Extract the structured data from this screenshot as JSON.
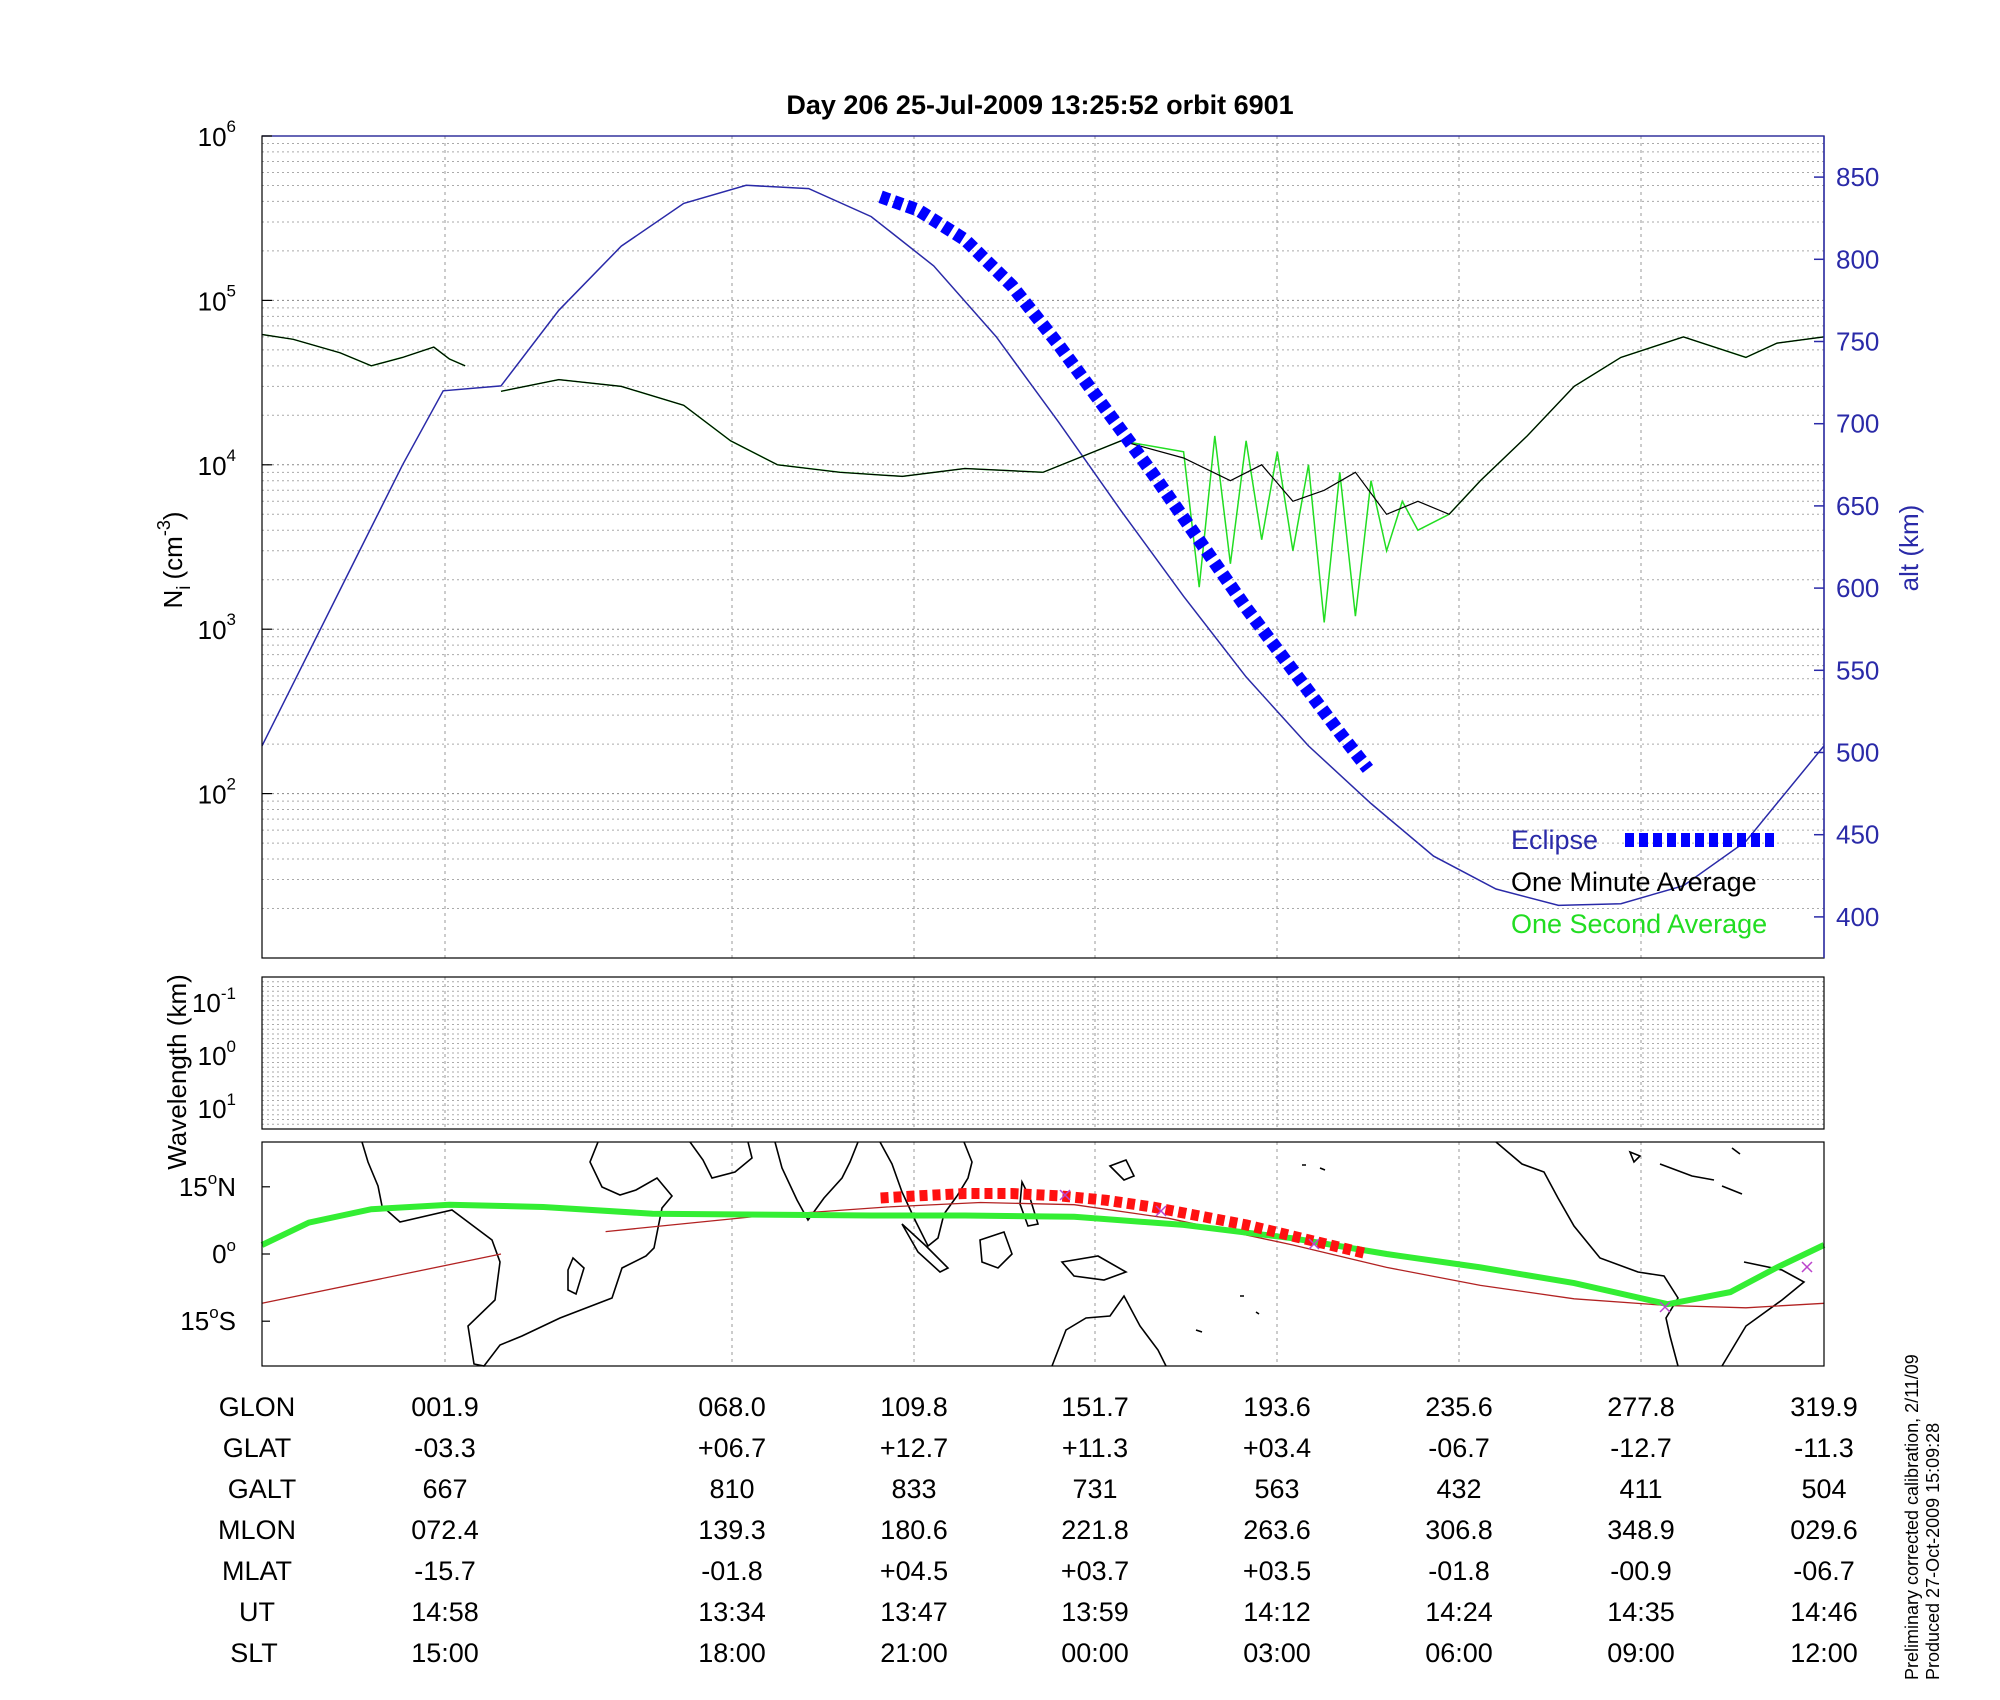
{
  "title": "Day 206  25-Jul-2009 13:25:52   orbit 6901",
  "colors": {
    "alt": "#2a2aa8",
    "eclipse": "#0000ff",
    "minute": "#000000",
    "second": "#22dd22",
    "track": "#33ee33",
    "sat_track": "#b22222",
    "eclipse_map": "#ff1111"
  },
  "chart_data": [
    {
      "type": "line",
      "name": "density-altitude",
      "ylabel_base": "N",
      "ylabel_sub": "i",
      "ylabel_unit": "(cm",
      "ylabel_exp": "-3",
      "ylabel_close": ")",
      "y_scale": "log",
      "y_ticks": [
        "10",
        "10",
        "10",
        "10",
        "10"
      ],
      "y_tick_exps": [
        "2",
        "3",
        "4",
        "5",
        "6"
      ],
      "ylim": [
        10,
        1000000
      ],
      "y2label": "alt (km)",
      "y2_ticks": [
        "400",
        "450",
        "500",
        "550",
        "600",
        "650",
        "700",
        "750",
        "800",
        "850"
      ],
      "y2lim": [
        375,
        875
      ],
      "xlim": [
        0,
        100
      ],
      "grid": true,
      "legend_position": "lower-right",
      "legend": [
        {
          "label": "Eclipse",
          "color": "#0000ff",
          "style": "thick-dashed"
        },
        {
          "label": "One Minute Average",
          "color": "#000000",
          "style": "line"
        },
        {
          "label": "One Second Average",
          "color": "#22dd22",
          "style": "line"
        }
      ],
      "series": [
        {
          "name": "Altitude",
          "axis": "right",
          "x": [
            0,
            3,
            6,
            9,
            11.6,
            15.3,
            19,
            23,
            27,
            31,
            35,
            39,
            43,
            47,
            51,
            55,
            59,
            63,
            67,
            71,
            75,
            79,
            83,
            87,
            91,
            95,
            100
          ],
          "y": [
            504,
            561,
            618,
            675,
            720,
            723,
            769,
            808,
            834,
            845,
            843,
            826,
            796,
            753,
            701,
            647,
            595,
            546,
            504,
            469,
            437,
            417,
            407,
            408,
            419,
            446,
            504
          ]
        },
        {
          "name": "One Minute Average",
          "axis": "left",
          "x": [
            0,
            2,
            5,
            7,
            9,
            11,
            12,
            13,
            15,
            15.3,
            19,
            23,
            27,
            30,
            33,
            37,
            41,
            45,
            50,
            55,
            59,
            62,
            64,
            66,
            68,
            70,
            72,
            74,
            76,
            78,
            81,
            84,
            87,
            91,
            95,
            97,
            100
          ],
          "y": [
            62000,
            58000,
            48000,
            40000,
            45000,
            52000,
            44000,
            40000,
            null,
            28000,
            33000,
            30000,
            23000,
            14000,
            10000,
            9000,
            8500,
            9500,
            9000,
            14000,
            11000,
            8000,
            10000,
            6000,
            7000,
            9000,
            5000,
            6000,
            5000,
            8000,
            15000,
            30000,
            45000,
            60000,
            45000,
            55000,
            60000
          ]
        },
        {
          "name": "One Second Average",
          "axis": "left",
          "x": [
            0,
            2,
            5,
            7,
            9,
            11,
            12,
            13,
            15,
            15.3,
            19,
            23,
            27,
            30,
            33,
            37,
            41,
            45,
            50,
            55,
            59,
            60,
            61,
            62,
            63,
            64,
            65,
            66,
            67,
            68,
            69,
            70,
            71,
            72,
            73,
            74,
            76,
            78,
            81,
            84,
            87,
            91,
            95,
            97,
            100
          ],
          "y": [
            62000,
            58000,
            48000,
            40000,
            45000,
            52000,
            44000,
            40000,
            null,
            28000,
            33000,
            30000,
            23000,
            14000,
            10000,
            9000,
            8500,
            9500,
            9000,
            14000,
            12000,
            1800,
            15000,
            2500,
            14000,
            3500,
            12000,
            3000,
            10000,
            1100,
            9000,
            1200,
            8000,
            3000,
            6000,
            4000,
            5000,
            8000,
            15000,
            30000,
            45000,
            60000,
            45000,
            55000,
            60000
          ]
        },
        {
          "name": "Eclipse",
          "axis": "right",
          "x": [
            39.6,
            42,
            45,
            48,
            51,
            54,
            57,
            60,
            63,
            66,
            69,
            70.8
          ],
          "y": [
            838,
            830,
            812,
            784,
            748,
            709,
            670,
            629,
            588,
            550,
            512,
            490
          ]
        }
      ]
    },
    {
      "type": "heatmap",
      "name": "wavelength",
      "ylabel": "Wavelength (km)",
      "y_ticks": [
        "10",
        "10",
        "10"
      ],
      "y_tick_exps": [
        "-1",
        "0",
        "1"
      ],
      "values": []
    },
    {
      "type": "line",
      "name": "ground-track-map",
      "y_ticks": [
        "15",
        "0",
        "15"
      ],
      "y_tick_suffix": [
        "N",
        "",
        "S"
      ],
      "ylim": [
        -25,
        25
      ],
      "xlim": [
        0,
        100
      ],
      "series": [
        {
          "name": "Ground track",
          "x": [
            0,
            3,
            7,
            12,
            18,
            25,
            32,
            39,
            45,
            52,
            59,
            66,
            72,
            78,
            84,
            90,
            94,
            97,
            100
          ],
          "y": [
            2,
            7,
            10,
            11,
            10.5,
            9,
            8.8,
            8.6,
            8.6,
            8.3,
            6.5,
            3.5,
            0,
            -3,
            -6.5,
            -11.2,
            -8.5,
            -3,
            2
          ]
        },
        {
          "name": "Magnetic equator",
          "x": [
            0,
            15.3,
            null,
            22,
            32,
            40,
            46,
            52,
            58,
            66,
            72,
            78,
            84,
            90,
            95,
            100
          ],
          "y": [
            -11,
            0,
            null,
            5,
            8.5,
            10.5,
            11.5,
            11,
            8,
            2,
            -3,
            -7,
            -10,
            -11.5,
            -12,
            -11
          ]
        },
        {
          "name": "Eclipse segment",
          "x": [
            39.6,
            42,
            45,
            48,
            51,
            54,
            57,
            60,
            63,
            66,
            69,
            70.8
          ],
          "y": [
            12.5,
            13,
            13.5,
            13.5,
            13,
            12,
            10.5,
            8.5,
            6.5,
            4,
            1.5,
            0
          ]
        }
      ]
    }
  ],
  "footer": {
    "labels": [
      "GLON",
      "GLAT",
      "GALT",
      "MLON",
      "MLAT",
      "UT",
      "SLT"
    ],
    "columns": [
      [
        "001.9",
        "-03.3",
        "667",
        "072.4",
        "-15.7",
        "14:58",
        "15:00"
      ],
      [
        "068.0",
        "+06.7",
        "810",
        "139.3",
        "-01.8",
        "13:34",
        "18:00"
      ],
      [
        "109.8",
        "+12.7",
        "833",
        "180.6",
        "+04.5",
        "13:47",
        "21:00"
      ],
      [
        "151.7",
        "+11.3",
        "731",
        "221.8",
        "+03.7",
        "13:59",
        "00:00"
      ],
      [
        "193.6",
        "+03.4",
        "563",
        "263.6",
        "+03.5",
        "14:12",
        "03:00"
      ],
      [
        "235.6",
        "-06.7",
        "432",
        "306.8",
        "-01.8",
        "14:24",
        "06:00"
      ],
      [
        "277.8",
        "-12.7",
        "411",
        "348.9",
        "-00.9",
        "14:35",
        "09:00"
      ],
      [
        "319.9",
        "-11.3",
        "504",
        "029.6",
        "-06.7",
        "14:46",
        "12:00"
      ]
    ]
  },
  "side_note": {
    "line1": "Preliminary corrected calibration, 2/11/09",
    "line2": "Produced 27-Oct-2009 15:09:28"
  }
}
